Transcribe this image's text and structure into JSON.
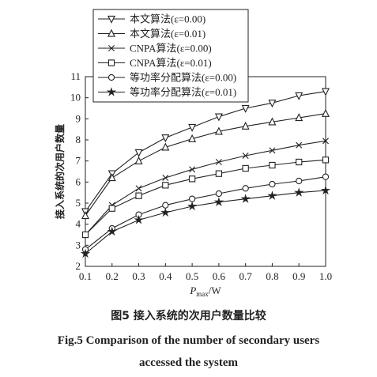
{
  "chart_data": {
    "type": "line",
    "y_label": "接入系统的次用户数量",
    "x_label": {
      "base": "P",
      "sub": "max",
      "unit": "/W"
    },
    "caption_cn": "图5   接入系统的次用户数量比较",
    "caption_en": "Fig.5   Comparison of the number of secondary users accessed the system",
    "x": [
      0.1,
      0.2,
      0.3,
      0.4,
      0.5,
      0.6,
      0.7,
      0.8,
      0.9,
      1
    ],
    "xlim": [
      0.1,
      1
    ],
    "xticks": [
      0.1,
      0.2,
      0.3,
      0.4,
      0.5,
      0.6,
      0.7,
      0.8,
      0.9,
      {
        "value": 1,
        "label": "1.0"
      }
    ],
    "ylim": [
      2,
      11
    ],
    "yticks": [
      2,
      3,
      4,
      5,
      6,
      7,
      8,
      9,
      10,
      11
    ],
    "series": [
      {
        "name": "本文算法(ε=0.00)",
        "color": "#222222",
        "marker": "triangle-down",
        "values": [
          4.6,
          6.4,
          7.4,
          8.1,
          8.6,
          9.1,
          9.5,
          9.75,
          10.1,
          10.3
        ]
      },
      {
        "name": "本文算法(ε=0.01)",
        "color": "#222222",
        "marker": "triangle-up",
        "values": [
          4.4,
          6.2,
          7.0,
          7.65,
          8.05,
          8.4,
          8.65,
          8.85,
          9.05,
          9.25
        ]
      },
      {
        "name": "CNPA算法(ε=0.00)",
        "color": "#222222",
        "marker": "x",
        "values": [
          3.5,
          4.9,
          5.7,
          6.2,
          6.6,
          6.95,
          7.25,
          7.5,
          7.75,
          7.95
        ]
      },
      {
        "name": "CNPA算法(ε=0.01)",
        "color": "#222222",
        "marker": "square",
        "values": [
          3.5,
          4.75,
          5.35,
          5.85,
          6.15,
          6.4,
          6.65,
          6.8,
          6.95,
          7.05
        ]
      },
      {
        "name": "等功率分配算法(ε=0.00)",
        "color": "#222222",
        "marker": "circle",
        "values": [
          2.8,
          3.8,
          4.45,
          4.9,
          5.2,
          5.45,
          5.7,
          5.9,
          6.05,
          6.25
        ]
      },
      {
        "name": "等功率分配算法(ε=0.01)",
        "color": "#222222",
        "marker": "star",
        "values": [
          2.6,
          3.65,
          4.2,
          4.55,
          4.85,
          5.05,
          5.2,
          5.35,
          5.5,
          5.6
        ]
      }
    ]
  }
}
